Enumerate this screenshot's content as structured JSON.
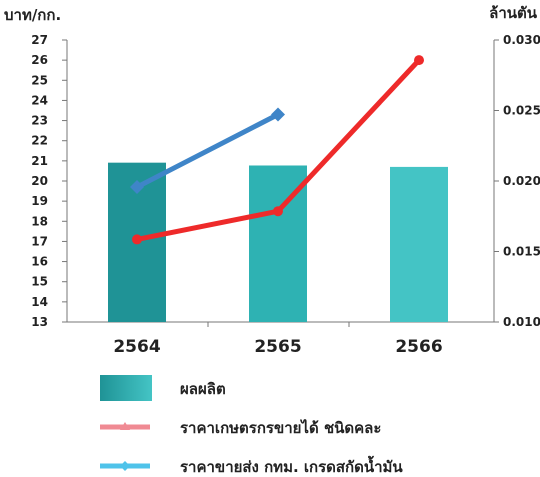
{
  "chart_data": {
    "type": "bar",
    "categories": [
      "2564",
      "2565",
      "2566"
    ],
    "left_axis": {
      "title": "บาท/กก.",
      "ylim": [
        13,
        27
      ],
      "ticks": [
        13,
        14,
        15,
        16,
        17,
        18,
        19,
        20,
        21,
        22,
        23,
        24,
        25,
        26,
        27
      ]
    },
    "right_axis": {
      "title": "ล้านตัน",
      "ylim": [
        0.01,
        0.03
      ],
      "ticks": [
        "0.010",
        "0.015",
        "0.020",
        "0.025",
        "0.030"
      ]
    },
    "series": [
      {
        "name": "ผลผลิต",
        "kind": "bar",
        "axis": "right",
        "values": [
          0.0213,
          0.0211,
          0.021
        ],
        "colors": [
          "#1f9396",
          "#2eb2b3",
          "#44c4c5"
        ]
      },
      {
        "name": "ราคาเกษตรกรขายได้  ชนิดคละ",
        "kind": "line",
        "axis": "left",
        "values": [
          17.1,
          18.5,
          26.0
        ],
        "color": "#ee2a2a",
        "legend_color": "#f08a93"
      },
      {
        "name": "ราคาขายส่ง กทม. เกรดสกัดน้ำมัน",
        "kind": "line",
        "axis": "left",
        "values": [
          19.7,
          23.3,
          null
        ],
        "color": "#3f85c8",
        "legend_color": "#4fc3ea"
      }
    ],
    "legend_position": "bottom",
    "grid": false
  }
}
